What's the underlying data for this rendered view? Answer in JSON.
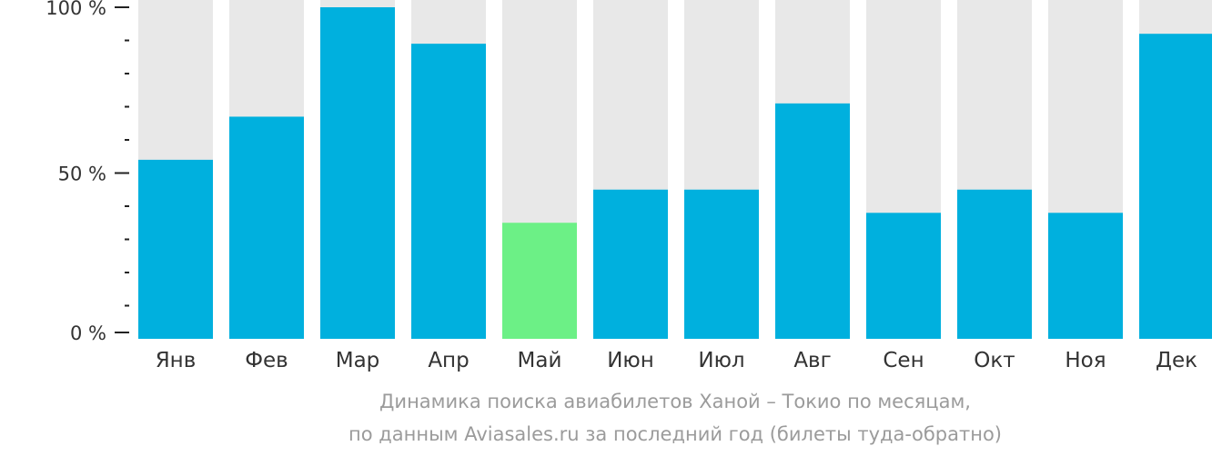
{
  "chart_data": {
    "type": "bar",
    "categories": [
      "Янв",
      "Фев",
      "Мар",
      "Апр",
      "Май",
      "Июн",
      "Июл",
      "Авг",
      "Сен",
      "Окт",
      "Ноя",
      "Дек"
    ],
    "values": [
      54,
      67,
      100,
      89,
      35,
      45,
      45,
      71,
      38,
      45,
      38,
      92
    ],
    "ylim": [
      0,
      100
    ],
    "yticks": [
      {
        "value": 0,
        "label": "0 %"
      },
      {
        "value": 50,
        "label": "50 %"
      },
      {
        "value": 100,
        "label": "100 %"
      }
    ],
    "minor_ticks": [
      10,
      20,
      30,
      40,
      60,
      70,
      80,
      90
    ],
    "highlight_index": 4,
    "title": "Динамика поиска авиабилетов Ханой – Токио по месяцам,",
    "subtitle": "по данным Aviasales.ru за последний год (билеты туда-обратно)",
    "colors": {
      "bar": "#00b0de",
      "highlight": "#6cf086",
      "background_bar": "#e8e8e8",
      "axis": "#222222",
      "caption": "#9b9b9b"
    }
  }
}
